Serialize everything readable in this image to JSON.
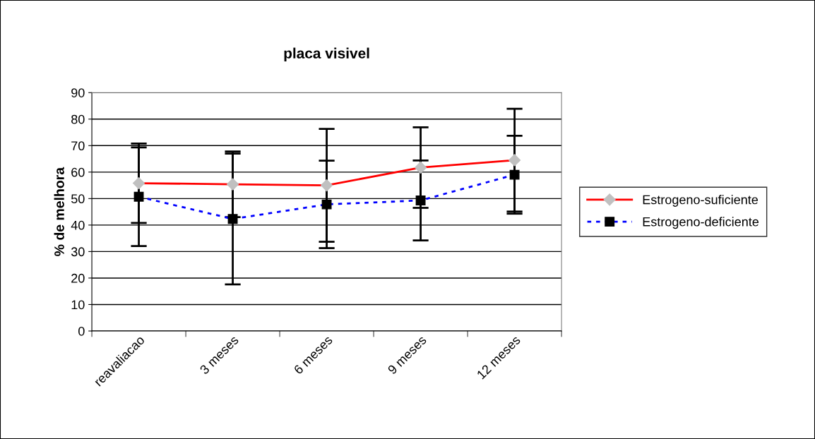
{
  "chart_data": {
    "type": "line",
    "title": "placa visivel",
    "ylabel": "% de melhora",
    "categories": [
      "reavaliacao",
      "3 meses",
      "6 meses",
      "9 meses",
      "12 meses"
    ],
    "series": [
      {
        "name": "Estrogeno-suficiente",
        "color": "#ff0000",
        "values": [
          55.8,
          55.4,
          55.0,
          61.7,
          64.5
        ],
        "errors": [
          15.0,
          12.4,
          21.3,
          15.2,
          19.4
        ],
        "marker": "diamond",
        "line_style": "solid"
      },
      {
        "name": "Estrogeno-deficiente",
        "color": "#0000ff",
        "values": [
          50.7,
          42.3,
          47.8,
          49.3,
          59.0
        ],
        "errors": [
          18.6,
          24.7,
          16.5,
          15.1,
          14.7
        ],
        "marker": "square",
        "line_style": "dotted"
      }
    ],
    "ylim": [
      0,
      90
    ],
    "yticks": [
      0,
      10,
      20,
      30,
      40,
      50,
      60,
      70,
      80,
      90
    ],
    "grid": "y",
    "legend": "right"
  }
}
